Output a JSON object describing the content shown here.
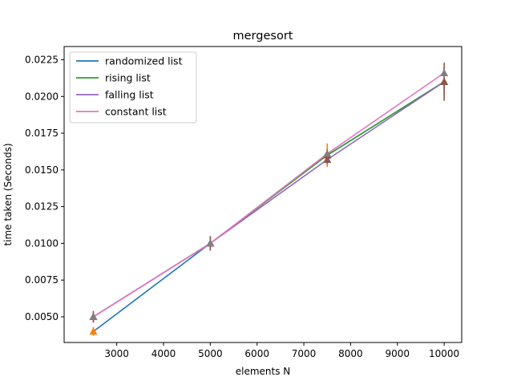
{
  "chart_data": {
    "type": "line",
    "title": "mergesort",
    "xlabel": "elements N",
    "ylabel": "time taken (Seconds)",
    "xlim": [
      1875,
      10375
    ],
    "ylim": [
      0.00325,
      0.0234
    ],
    "xticks": [
      3000,
      4000,
      5000,
      6000,
      7000,
      8000,
      9000,
      10000
    ],
    "yticks": [
      0.005,
      0.0075,
      0.01,
      0.0125,
      0.015,
      0.0175,
      0.02,
      0.0225
    ],
    "ytick_labels": [
      "0.0050",
      "0.0075",
      "0.0100",
      "0.0125",
      "0.0150",
      "0.0175",
      "0.0200",
      "0.0225"
    ],
    "grid": false,
    "legend_position": "top-left",
    "x": [
      2500,
      5000,
      7500,
      10000
    ],
    "series": [
      {
        "name": "randomized list",
        "color": "#1f77b4",
        "values": [
          0.004,
          0.01,
          0.016,
          0.021
        ]
      },
      {
        "name": "rising list",
        "color": "#2ca02c",
        "values": [
          0.005,
          0.01,
          0.016,
          0.021
        ]
      },
      {
        "name": "falling list",
        "color": "#9467bd",
        "values": [
          0.005,
          0.01,
          0.0157,
          0.021
        ]
      },
      {
        "name": "constant list",
        "color": "#e377c2",
        "values": [
          0.005,
          0.01,
          0.0161,
          0.0216
        ]
      }
    ],
    "error_bars": [
      {
        "color": "#ff7f0e",
        "marker_color": "#ff7f0e",
        "values": [
          0.004,
          0.01,
          0.016,
          0.021
        ],
        "errors": [
          0.0003,
          0.0004,
          0.0008,
          0.0009
        ]
      },
      {
        "color": "#d62728",
        "marker_color": "#d62728",
        "values": [
          0.005,
          0.01,
          0.016,
          0.021
        ],
        "errors": [
          0.0003,
          0.0003,
          0.0004,
          0.0005
        ]
      },
      {
        "color": "#8c564b",
        "marker_color": "#8c564b",
        "values": [
          0.005,
          0.01,
          0.0157,
          0.021
        ],
        "errors": [
          0.0004,
          0.0005,
          0.0003,
          0.0013
        ]
      },
      {
        "color": "#7f7f7f",
        "marker_color": "#7f7f7f",
        "values": [
          0.005,
          0.01,
          0.0161,
          0.0216
        ],
        "errors": [
          0.0002,
          0.0002,
          0.0002,
          0.0003
        ]
      }
    ]
  }
}
